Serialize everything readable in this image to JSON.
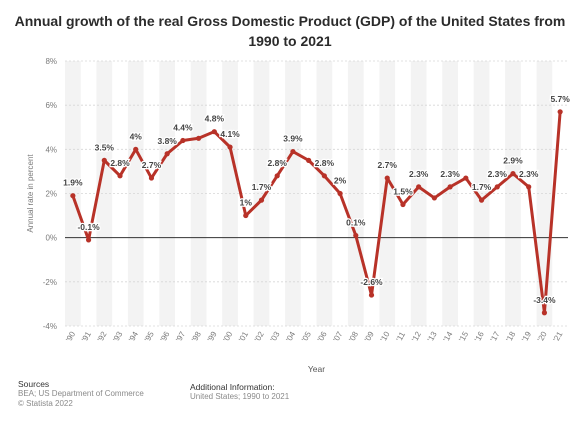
{
  "chart_data": {
    "type": "line",
    "title": "Annual growth of the real Gross Domestic Product (GDP) of the United States from 1990 to 2021",
    "xlabel": "Year",
    "ylabel": "Annual rate in percent",
    "ylim": [
      -4,
      8
    ],
    "yticks": [
      -4,
      -2,
      0,
      2,
      4,
      6,
      8
    ],
    "ytick_labels": [
      "-4%",
      "-2%",
      "0%",
      "2%",
      "4%",
      "6%",
      "8%"
    ],
    "categories": [
      "'90",
      "'91",
      "'92",
      "'93",
      "'94",
      "'95",
      "'96",
      "'97",
      "'98",
      "'99",
      "'00",
      "'01",
      "'02",
      "'03",
      "'04",
      "'05",
      "'06",
      "'07",
      "'08",
      "'09",
      "'10",
      "'11",
      "'12",
      "'13",
      "'14",
      "'15",
      "'16",
      "'17",
      "'18",
      "'19",
      "'20",
      "'21"
    ],
    "values": [
      1.9,
      -0.1,
      3.5,
      2.8,
      4.0,
      2.7,
      3.8,
      4.4,
      4.5,
      4.8,
      4.1,
      1.0,
      1.7,
      2.8,
      3.9,
      3.5,
      2.8,
      2.0,
      0.1,
      -2.6,
      2.7,
      1.5,
      2.3,
      1.8,
      2.3,
      2.7,
      1.7,
      2.3,
      2.9,
      2.3,
      -3.4,
      5.7
    ],
    "data_labels": [
      "1.9%",
      "-0.1%",
      "3.5%",
      "2.8%",
      "4%",
      "2.7%",
      "3.8%",
      "4.4%",
      "",
      "4.8%",
      "4.1%",
      "1%",
      "1.7%",
      "2.8%",
      "3.9%",
      "",
      "2.8%",
      "2%",
      "0.1%",
      "-2.6%",
      "2.7%",
      "1.5%",
      "2.3%",
      "",
      "2.3%",
      "",
      "1.7%",
      "2.3%",
      "2.9%",
      "2.3%",
      "-3.4%",
      "5.7%"
    ],
    "line_color": "#b83228",
    "grid": true,
    "alternating_bands": true
  },
  "footer": {
    "sources_heading": "Sources",
    "source_1": "BEA; US Department of Commerce",
    "source_2": "© Statista 2022",
    "additional_heading": "Additional Information:",
    "additional_text": "United States; 1990 to 2021"
  }
}
